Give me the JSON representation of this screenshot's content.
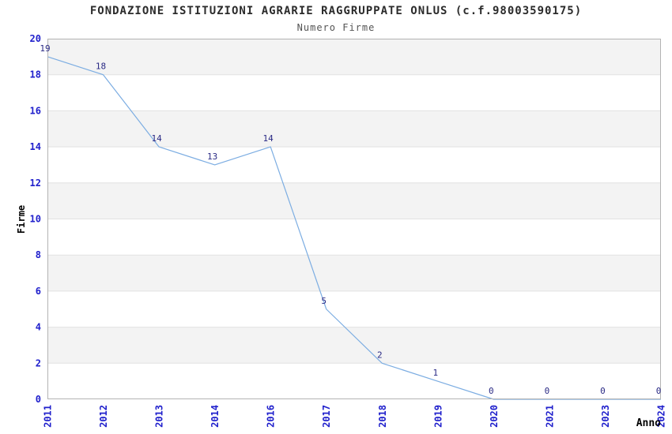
{
  "chart_data": {
    "type": "line",
    "title": "FONDAZIONE ISTITUZIONI AGRARIE RAGGRUPPATE ONLUS (c.f.98003590175)",
    "subtitle": "Numero Firme",
    "xlabel": "Anno",
    "ylabel": "Firme",
    "categories": [
      "2011",
      "2012",
      "2013",
      "2014",
      "2016",
      "2017",
      "2018",
      "2019",
      "2020",
      "2021",
      "2023",
      "2024"
    ],
    "values": [
      19,
      18,
      14,
      13,
      14,
      5,
      2,
      1,
      0,
      0,
      0,
      0
    ],
    "data_labels": [
      "19",
      "18",
      "14",
      "13",
      "14",
      "5",
      "2",
      "1",
      "0",
      "0",
      "0",
      "0"
    ],
    "ytick_labels": [
      "0",
      "2",
      "4",
      "6",
      "8",
      "10",
      "12",
      "14",
      "16",
      "18",
      "20"
    ],
    "ylim": [
      0,
      20
    ],
    "ytick_step": 2,
    "grid": true,
    "banding": "alternating-horizontal-bands",
    "legend": "none",
    "colors": {
      "line": "#7cade2",
      "tick_label": "#2020cc",
      "data_label": "#2a2a85",
      "title": "#2b2b2b",
      "subtitle": "#545454",
      "band": "#f3f3f3",
      "gridline": "#e2e2e2",
      "border": "#b3b3b3",
      "axis_label": "#000000",
      "background": "#ffffff"
    }
  }
}
